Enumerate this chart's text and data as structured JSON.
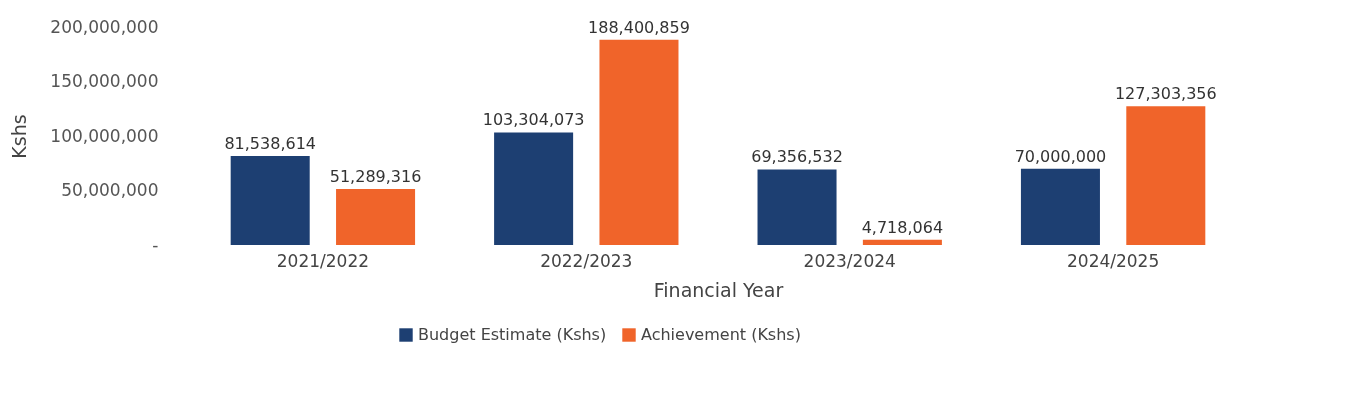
{
  "chart_data": {
    "type": "bar",
    "xlabel": "Financial Year",
    "ylabel": "Kshs",
    "categories": [
      "2021/2022",
      "2022/2023",
      "2023/2024",
      "2024/2025"
    ],
    "series": [
      {
        "name": "Budget Estimate (Kshs)",
        "color": "#1d3f72",
        "values": [
          81538614,
          103304073,
          69356532,
          70000000
        ],
        "value_labels": [
          "81,538,614",
          "103,304,073",
          "69,356,532",
          "70,000,000"
        ]
      },
      {
        "name": "Achievement (Kshs)",
        "color": "#f0642a",
        "values": [
          51289316,
          188400859,
          4718064,
          127303356
        ],
        "value_labels": [
          "51,289,316",
          "188,400,859",
          "4,718,064",
          "127,303,356"
        ]
      }
    ],
    "ylim": [
      0,
      200000000
    ],
    "yticks": [
      {
        "value": 0,
        "label": "-"
      },
      {
        "value": 50000000,
        "label": "50,000,000"
      },
      {
        "value": 100000000,
        "label": "100,000,000"
      },
      {
        "value": 150000000,
        "label": "150,000,000"
      },
      {
        "value": 200000000,
        "label": "200,000,000"
      }
    ],
    "grid": false,
    "legend": "bottom"
  }
}
